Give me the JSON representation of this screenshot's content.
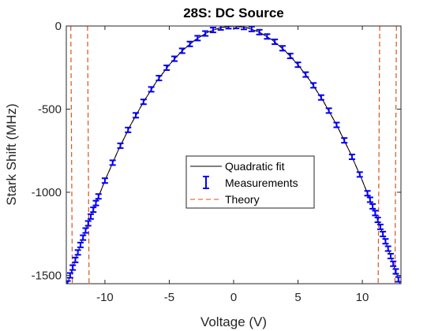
{
  "chart_data": {
    "type": "line",
    "title": "28S: DC Source",
    "xlabel": "Voltage (V)",
    "ylabel": "Stark Shift (MHz)",
    "xlim": [
      -13,
      13
    ],
    "ylim": [
      -1550,
      0
    ],
    "x_ticks": [
      -10,
      -5,
      0,
      5,
      10
    ],
    "y_ticks": [
      0,
      -500,
      -1000,
      -1500
    ],
    "x_tick_labels": [
      "-10",
      "-5",
      "0",
      "5",
      "10"
    ],
    "y_tick_labels": [
      "0",
      "-500",
      "-1000",
      "-1500"
    ],
    "grid": false,
    "legend_position": "center",
    "colors": {
      "fit": "#000000",
      "measurements": "#0000ff",
      "theory": "#d95319",
      "axes": "#262626",
      "background": "#ffffff"
    },
    "series": [
      {
        "name": "Quadratic fit",
        "style": "solid-line",
        "model": "y = -9.3 * x^2",
        "x": [
          -12.9,
          -12,
          -11,
          -10,
          -9,
          -8,
          -7,
          -6,
          -5,
          -4,
          -3,
          -2,
          -1,
          0,
          1,
          2,
          3,
          4,
          5,
          6,
          7,
          8,
          9,
          10,
          11,
          12,
          12.9
        ],
        "values": [
          -1548,
          -1339,
          -1125,
          -930,
          -753,
          -595,
          -456,
          -335,
          -233,
          -149,
          -84,
          -37,
          -9,
          0,
          -9,
          -37,
          -84,
          -149,
          -233,
          -335,
          -456,
          -595,
          -753,
          -930,
          -1125,
          -1339,
          -1548
        ]
      },
      {
        "name": "Measurements",
        "style": "errorbar-markers",
        "x": [
          -12.9,
          -12.7,
          -12.5,
          -12.3,
          -12.1,
          -11.9,
          -11.7,
          -11.5,
          -11.3,
          -11.1,
          -10.9,
          -10.7,
          -10.5,
          -10.0,
          -9.4,
          -8.8,
          -8.2,
          -7.6,
          -7.0,
          -6.4,
          -5.8,
          -5.2,
          -4.6,
          -4.0,
          -3.4,
          -2.8,
          -2.2,
          -1.6,
          -1.0,
          -0.4,
          0.2,
          0.8,
          1.4,
          2.0,
          2.6,
          3.2,
          3.8,
          4.4,
          5.0,
          5.6,
          6.2,
          6.8,
          7.4,
          8.0,
          8.6,
          9.2,
          9.8,
          10.4,
          10.6,
          10.8,
          11.0,
          11.2,
          11.4,
          11.6,
          11.8,
          12.0,
          12.2,
          12.4,
          12.6,
          12.8,
          13.0
        ],
        "values": [
          -1548,
          -1500,
          -1453,
          -1407,
          -1362,
          -1317,
          -1273,
          -1230,
          -1187,
          -1146,
          -1105,
          -1065,
          -1025,
          -930,
          -822,
          -720,
          -625,
          -537,
          -456,
          -381,
          -313,
          -251,
          -197,
          -149,
          -108,
          -73,
          -45,
          -24,
          -9,
          -1.5,
          -0.4,
          -6,
          -18,
          -37,
          -63,
          -95,
          -134,
          -180,
          -233,
          -292,
          -357,
          -430,
          -509,
          -595,
          -688,
          -787,
          -893,
          -1006,
          -1045,
          -1085,
          -1125,
          -1166,
          -1208,
          -1251,
          -1295,
          -1339,
          -1384,
          -1430,
          -1476,
          -1524,
          -1572
        ],
        "error": 12
      },
      {
        "name": "Theory",
        "style": "dashed-line",
        "x": [
          -11.5,
          -11,
          -10,
          -9,
          -8,
          -7,
          -6,
          -5,
          -4,
          -3,
          -2,
          -1,
          0,
          1,
          2,
          3,
          4,
          5,
          6,
          7,
          8,
          9,
          10,
          11,
          11.5
        ],
        "values": [
          -1230,
          -1125,
          -930,
          -753,
          -595,
          -456,
          -335,
          -233,
          -149,
          -84,
          -37,
          -9,
          0,
          -9,
          -37,
          -84,
          -149,
          -233,
          -335,
          -456,
          -595,
          -753,
          -930,
          -1125,
          -1230
        ]
      }
    ],
    "theory_resonances": [
      -12.65,
      -11.35,
      11.35,
      12.65
    ]
  }
}
